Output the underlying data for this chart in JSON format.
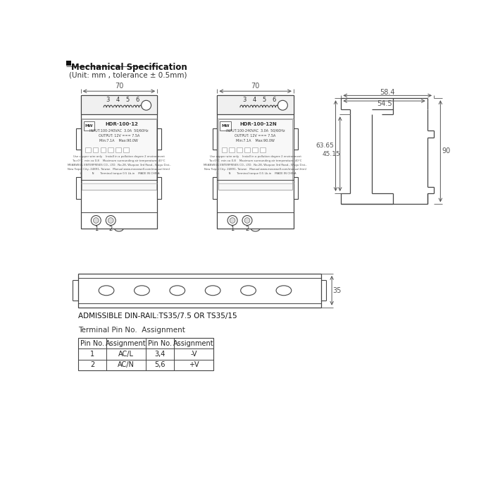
{
  "title": "Mechanical Specification",
  "subtitle": "(Unit: mm , tolerance ± 0.5mm)",
  "bg_color": "#ffffff",
  "line_color": "#444444",
  "dim_color": "#555555",
  "text_color": "#222222",
  "table_data": [
    [
      "Pin No.",
      "Assignment",
      "Pin No.",
      "Assignment"
    ],
    [
      "1",
      "AC/L",
      "3,4",
      "-V"
    ],
    [
      "2",
      "AC/N",
      "5,6",
      "+V"
    ]
  ],
  "din_rail_label": "ADMISSIBLE DIN-RAIL:TS35/7.5 OR TS35/15",
  "terminal_label": "Terminal Pin No.  Assignment",
  "dim_58_4": "58.4",
  "dim_54_5": "54.5",
  "dim_90": "90",
  "dim_63_65": "63.65",
  "dim_45_15": "45.15",
  "dim_70_left": "70",
  "dim_70_right": "70",
  "dim_35": "35"
}
